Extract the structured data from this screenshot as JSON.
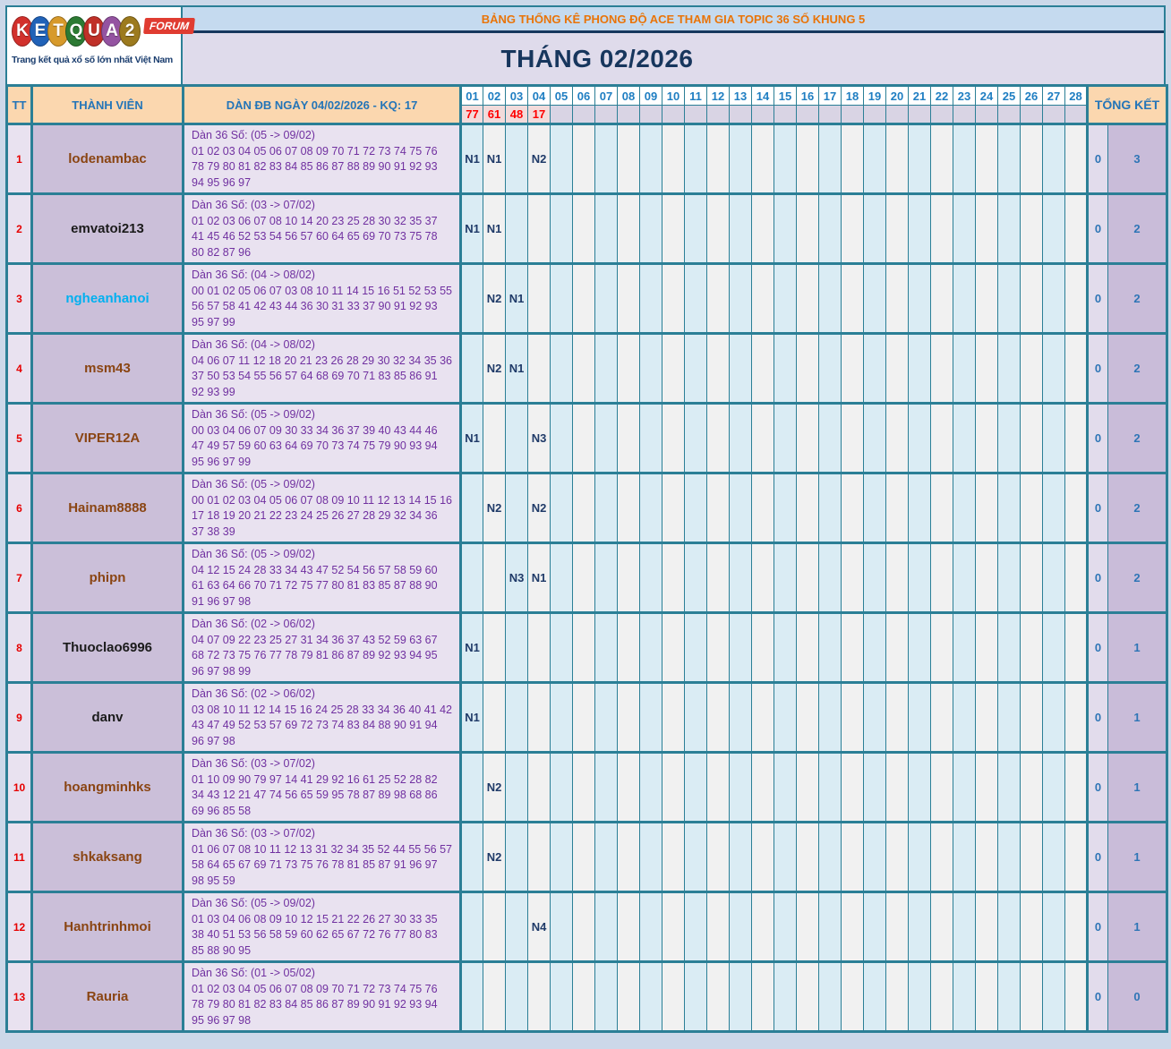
{
  "logo": {
    "letters": [
      {
        "ch": "K",
        "color": "#d2302c"
      },
      {
        "ch": "E",
        "color": "#2062b8"
      },
      {
        "ch": "T",
        "color": "#d79a2b"
      },
      {
        "ch": "Q",
        "color": "#2c7a33"
      },
      {
        "ch": "U",
        "color": "#c03028"
      },
      {
        "ch": "A",
        "color": "#9453a1"
      },
      {
        "ch": "2",
        "color": "#9c7a1e"
      }
    ],
    "forum_label": "FORUM",
    "tagline": "Trang kết quả xổ số lớn nhất Việt Nam"
  },
  "header": {
    "top_title": "BẢNG THỐNG KÊ PHONG ĐỘ ACE THAM GIA TOPIC 36 SỐ KHUNG 5",
    "month_title": "THÁNG 02/2026"
  },
  "table": {
    "tt_header": "TT",
    "member_header": "THÀNH VIÊN",
    "dan_header": "DÀN ĐB NGÀY 04/02/2026 - KQ: 17",
    "tongket_header": "TỔNG KẾT",
    "day_columns": [
      "01",
      "02",
      "03",
      "04",
      "05",
      "06",
      "07",
      "08",
      "09",
      "10",
      "11",
      "12",
      "13",
      "14",
      "15",
      "16",
      "17",
      "18",
      "19",
      "20",
      "21",
      "22",
      "23",
      "24",
      "25",
      "26",
      "27",
      "28"
    ],
    "day_results": [
      "77",
      "61",
      "48",
      "17"
    ],
    "rows": [
      {
        "tt": "1",
        "member": "lodenambac",
        "member_color": "#8a4513",
        "dan_label": "Dàn 36 Số: (05 -> 09/02)",
        "dan_numbers": "01 02 03 04 05 06 07 08 09 70 71 72 73 74 75 76 78 79 80 81 82 83 84 85 86 87 88 89 90 91 92 93 94 95 96 97",
        "marks": {
          "01": "N1",
          "02": "N1",
          "04": "N2"
        },
        "tk1": "0",
        "tk2": "3"
      },
      {
        "tt": "2",
        "member": "emvatoi213",
        "member_color": "#1b1b1b",
        "dan_label": "Dàn 36 Số: (03 -> 07/02)",
        "dan_numbers": "01 02 03 06 07 08 10 14 20 23 25 28 30 32 35 37 41 45 46 52 53 54 56 57 60 64 65 69 70 73 75 78 80 82 87 96",
        "marks": {
          "01": "N1",
          "02": "N1"
        },
        "tk1": "0",
        "tk2": "2"
      },
      {
        "tt": "3",
        "member": "ngheanhanoi",
        "member_color": "#00b0f0",
        "dan_label": "Dàn 36 Số: (04 -> 08/02)",
        "dan_numbers": "00 01 02 05 06 07 03 08 10 11 14 15 16 51 52 53 55 56 57 58 41 42 43 44 36 30 31 33 37 90 91 92 93 95 97 99",
        "marks": {
          "02": "N2",
          "03": "N1"
        },
        "tk1": "0",
        "tk2": "2"
      },
      {
        "tt": "4",
        "member": "msm43",
        "member_color": "#8a4513",
        "dan_label": "Dàn 36 Số: (04 -> 08/02)",
        "dan_numbers": "04 06 07 11 12 18 20 21 23 26 28 29 30 32 34 35 36 37 50 53 54 55 56 57 64 68 69 70 71 83 85 86 91 92 93 99",
        "marks": {
          "02": "N2",
          "03": "N1"
        },
        "tk1": "0",
        "tk2": "2"
      },
      {
        "tt": "5",
        "member": "VIPER12A",
        "member_color": "#8a4513",
        "dan_label": "Dàn 36 Số: (05 -> 09/02)",
        "dan_numbers": "00 03 04 06 07 09 30 33 34 36 37 39 40 43 44 46 47 49 57 59 60 63 64 69 70 73 74 75 79 90 93 94 95 96 97 99",
        "marks": {
          "01": "N1",
          "04": "N3"
        },
        "tk1": "0",
        "tk2": "2"
      },
      {
        "tt": "6",
        "member": "Hainam8888",
        "member_color": "#8a4513",
        "dan_label": "Dàn 36 Số: (05 -> 09/02)",
        "dan_numbers": "00 01 02 03 04 05 06 07 08 09 10 11 12 13 14 15 16 17 18 19 20 21 22 23 24 25 26 27 28 29 32 34 36 37 38 39",
        "marks": {
          "02": "N2",
          "04": "N2"
        },
        "tk1": "0",
        "tk2": "2"
      },
      {
        "tt": "7",
        "member": "phipn",
        "member_color": "#8a4513",
        "dan_label": "Dàn 36 Số: (05 -> 09/02)",
        "dan_numbers": "04 12 15 24 28 33 34 43 47 52 54 56 57 58 59 60 61 63 64 66 70 71 72 75 77 80 81 83 85 87 88 90 91 96 97 98",
        "marks": {
          "03": "N3",
          "04": "N1"
        },
        "tk1": "0",
        "tk2": "2"
      },
      {
        "tt": "8",
        "member": "Thuoclao6996",
        "member_color": "#1b1b1b",
        "dan_label": "Dàn 36 Số: (02 -> 06/02)",
        "dan_numbers": "04 07 09 22 23 25 27 31 34 36 37 43 52 59 63 67 68 72 73 75 76 77 78 79 81 86 87 89 92 93 94 95 96 97 98 99",
        "marks": {
          "01": "N1"
        },
        "tk1": "0",
        "tk2": "1"
      },
      {
        "tt": "9",
        "member": "danv",
        "member_color": "#1b1b1b",
        "dan_label": "Dàn 36 Số: (02 -> 06/02)",
        "dan_numbers": "03 08 10 11 12 14 15 16 24 25 28 33 34 36 40 41 42 43 47 49 52 53 57 69 72 73 74 83 84 88 90 91 94 96 97 98",
        "marks": {
          "01": "N1"
        },
        "tk1": "0",
        "tk2": "1"
      },
      {
        "tt": "10",
        "member": "hoangminhks",
        "member_color": "#8a4513",
        "dan_label": "Dàn 36 Số: (03 -> 07/02)",
        "dan_numbers": "01 10 09 90 79 97 14 41 29 92 16 61 25 52 28 82 34 43 12 21 47 74 56 65 59 95 78 87 89 98 68 86 69 96 85 58",
        "marks": {
          "02": "N2"
        },
        "tk1": "0",
        "tk2": "1"
      },
      {
        "tt": "11",
        "member": "shkaksang",
        "member_color": "#8a4513",
        "dan_label": "Dàn 36 Số: (03 -> 07/02)",
        "dan_numbers": "01 06 07 08 10 11 12 13 31 32 34 35 52 44 55 56 57 58 64 65 67 69 71 73 75 76 78 81 85 87 91 96 97 98 95 59",
        "marks": {
          "02": "N2"
        },
        "tk1": "0",
        "tk2": "1"
      },
      {
        "tt": "12",
        "member": "Hanhtrinhmoi",
        "member_color": "#8a4513",
        "dan_label": "Dàn 36 Số: (05 -> 09/02)",
        "dan_numbers": "01 03 04 06 08 09 10 12 15 21 22 26 27 30 33 35 38 40 51 53 56 58 59 60 62 65 67 72 76 77 80 83 85 88 90 95",
        "marks": {
          "04": "N4"
        },
        "tk1": "0",
        "tk2": "1"
      },
      {
        "tt": "13",
        "member": "Rauria",
        "member_color": "#8a4513",
        "dan_label": "Dàn 36 Số: (01 -> 05/02)",
        "dan_numbers": "01 02 03 04 05 06 07 08 09 70 71 72 73 74 75 76 78 79 80 81 82 83 84 85 86 87 89 90 91 92 93 94 95 96 97 98",
        "marks": {},
        "tk1": "0",
        "tk2": "0"
      }
    ]
  },
  "colors": {
    "border_teal": "#2b7f96",
    "header_peach": "#fbd7af",
    "header_blue_text": "#2475b8",
    "top_band_blue": "#c5daef",
    "top_title_orange": "#e97408",
    "month_band_lavender": "#dfdbeb",
    "month_text_navy": "#17365d",
    "result_red": "#ff0000",
    "dan_purple": "#7030a0",
    "mark_navy": "#1f3a68",
    "member_bg": "#cbbfd9",
    "day_col_blue": "#daecf4",
    "day_col_gray": "#f1f1f1"
  }
}
